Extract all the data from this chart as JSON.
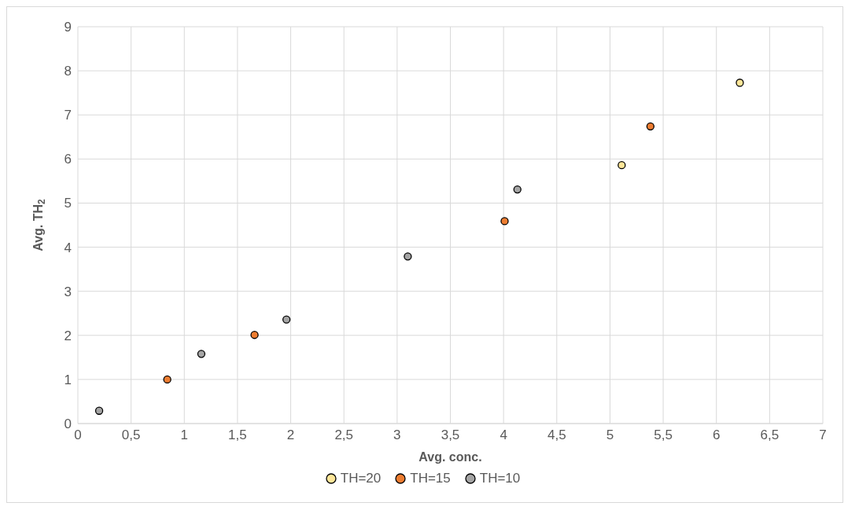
{
  "chart_data": {
    "type": "scatter",
    "xlabel": "Avg. conc.",
    "ylabel": "Avg. TH$_{2}$",
    "xlim": [
      0,
      7
    ],
    "xticks": [
      0,
      {
        "value": 0.5,
        "label": "0,5"
      },
      1,
      {
        "value": 1.5,
        "label": "1,5"
      },
      2,
      {
        "value": 2.5,
        "label": "2,5"
      },
      3,
      {
        "value": 3.5,
        "label": "3,5"
      },
      4,
      {
        "value": 4.5,
        "label": "4,5"
      },
      5,
      {
        "value": 5.5,
        "label": "5,5"
      },
      6,
      {
        "value": 6.5,
        "label": "6,5"
      },
      7
    ],
    "ylim": [
      0,
      9
    ],
    "yticks": [
      0,
      1,
      2,
      3,
      4,
      5,
      6,
      7,
      8,
      9
    ],
    "grid": true,
    "legend": "bottom",
    "marker": "circle",
    "series": [
      {
        "name": "TH=20",
        "color": "#ffe699",
        "x": [
          5.11,
          6.22
        ],
        "values": [
          5.86,
          7.73
        ]
      },
      {
        "name": "TH=15",
        "color": "#ed7d31",
        "x": [
          0.84,
          1.66,
          4.01,
          5.38
        ],
        "values": [
          1.0,
          2.01,
          4.59,
          6.74
        ]
      },
      {
        "name": "TH=10",
        "color": "#a5a5a5",
        "x": [
          0.2,
          1.16,
          1.96,
          3.1,
          4.13
        ],
        "values": [
          0.29,
          1.58,
          2.36,
          3.79,
          5.31
        ]
      }
    ]
  }
}
